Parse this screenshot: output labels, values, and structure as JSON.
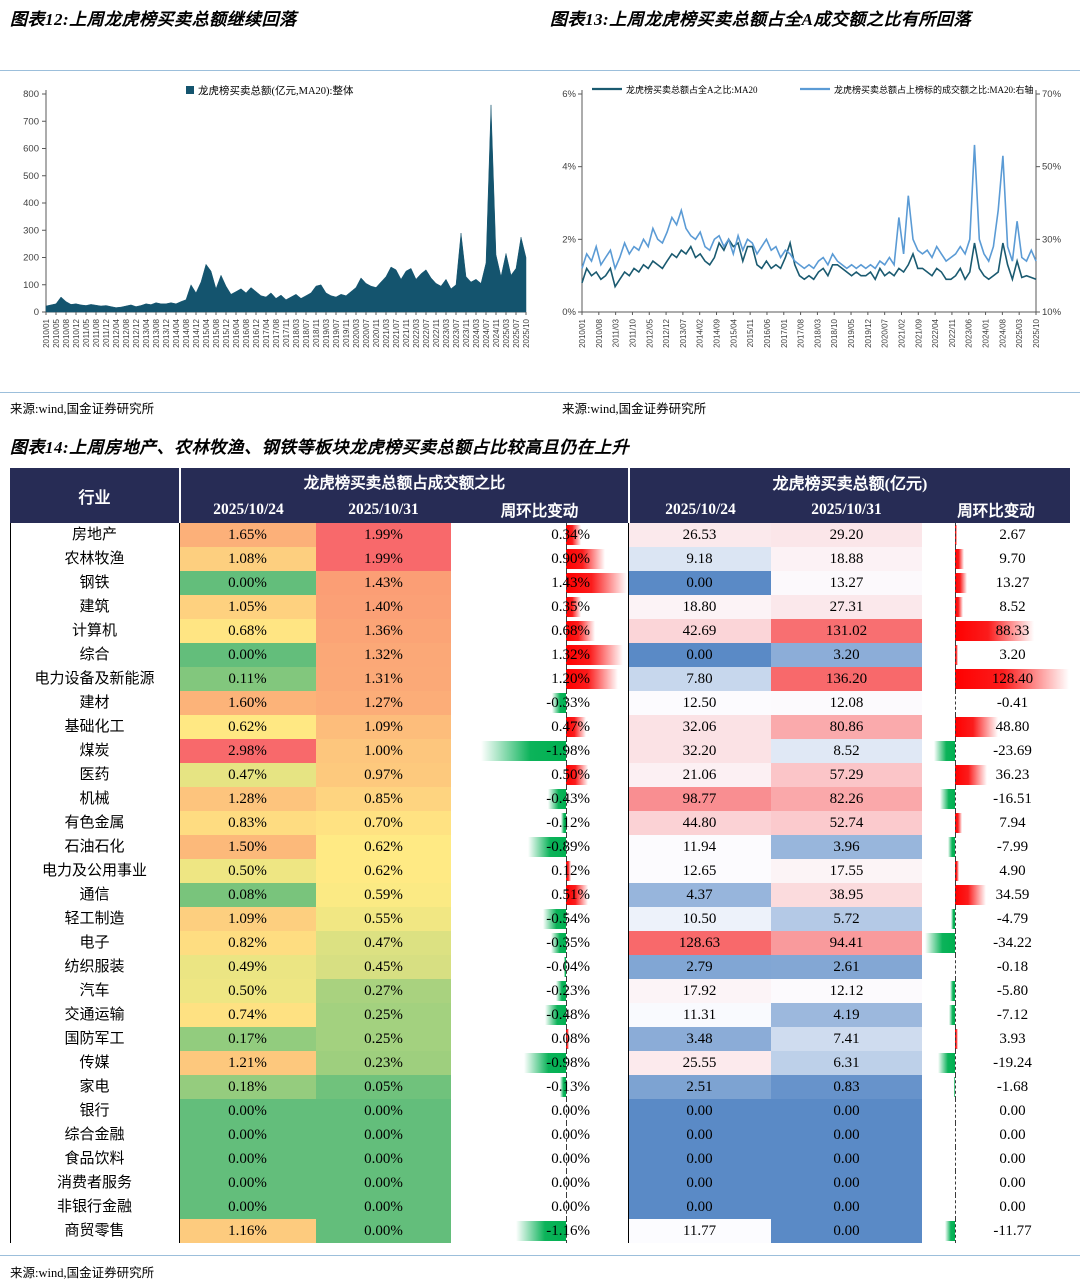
{
  "figure12": {
    "title": "图表12:上周龙虎榜买卖总额继续回落",
    "source": "来源:wind,国金证券研究所"
  },
  "figure13": {
    "title": "图表13:上周龙虎榜买卖总额占全A成交额之比有所回落",
    "source": "来源:wind,国金证券研究所"
  },
  "figure14": {
    "title": "图表14:上周房地产、农林牧渔、钢铁等板块龙虎榜买卖总额占比较高且仍在上升",
    "source": "来源:wind,国金证券研究所",
    "header": {
      "industry": "行业",
      "group_ratio": "龙虎榜买卖总额占成交额之比",
      "group_amount": "龙虎榜买卖总额(亿元)",
      "date1": "2025/10/24",
      "date2": "2025/10/31",
      "change": "周环比变动"
    },
    "colors": {
      "scale_green": "#63be7b",
      "scale_yellow": "#ffeb84",
      "scale_red": "#f8696b",
      "scale_blue": "#5a8ac6",
      "scale_white": "#fcfcff",
      "bar_pos": "#ff0000",
      "bar_neg": "#00b050",
      "header_bg": "#272c55"
    },
    "rows": [
      {
        "name": "房地产",
        "r24": 1.65,
        "r31": 1.99,
        "rchg": 0.34,
        "a24": 26.53,
        "a31": 29.2,
        "achg": 2.67
      },
      {
        "name": "农林牧渔",
        "r24": 1.08,
        "r31": 1.99,
        "rchg": 0.9,
        "a24": 9.18,
        "a31": 18.88,
        "achg": 9.7
      },
      {
        "name": "钢铁",
        "r24": 0.0,
        "r31": 1.43,
        "rchg": 1.43,
        "a24": 0.0,
        "a31": 13.27,
        "achg": 13.27
      },
      {
        "name": "建筑",
        "r24": 1.05,
        "r31": 1.4,
        "rchg": 0.35,
        "a24": 18.8,
        "a31": 27.31,
        "achg": 8.52
      },
      {
        "name": "计算机",
        "r24": 0.68,
        "r31": 1.36,
        "rchg": 0.68,
        "a24": 42.69,
        "a31": 131.02,
        "achg": 88.33
      },
      {
        "name": "综合",
        "r24": 0.0,
        "r31": 1.32,
        "rchg": 1.32,
        "a24": 0.0,
        "a31": 3.2,
        "achg": 3.2
      },
      {
        "name": "电力设备及新能源",
        "r24": 0.11,
        "r31": 1.31,
        "rchg": 1.2,
        "a24": 7.8,
        "a31": 136.2,
        "achg": 128.4
      },
      {
        "name": "建材",
        "r24": 1.6,
        "r31": 1.27,
        "rchg": -0.33,
        "a24": 12.5,
        "a31": 12.08,
        "achg": -0.41
      },
      {
        "name": "基础化工",
        "r24": 0.62,
        "r31": 1.09,
        "rchg": 0.47,
        "a24": 32.06,
        "a31": 80.86,
        "achg": 48.8
      },
      {
        "name": "煤炭",
        "r24": 2.98,
        "r31": 1.0,
        "rchg": -1.98,
        "a24": 32.2,
        "a31": 8.52,
        "achg": -23.69
      },
      {
        "name": "医药",
        "r24": 0.47,
        "r31": 0.97,
        "rchg": 0.5,
        "a24": 21.06,
        "a31": 57.29,
        "achg": 36.23
      },
      {
        "name": "机械",
        "r24": 1.28,
        "r31": 0.85,
        "rchg": -0.43,
        "a24": 98.77,
        "a31": 82.26,
        "achg": -16.51
      },
      {
        "name": "有色金属",
        "r24": 0.83,
        "r31": 0.7,
        "rchg": -0.12,
        "a24": 44.8,
        "a31": 52.74,
        "achg": 7.94
      },
      {
        "name": "石油石化",
        "r24": 1.5,
        "r31": 0.62,
        "rchg": -0.89,
        "a24": 11.94,
        "a31": 3.96,
        "achg": -7.99
      },
      {
        "name": "电力及公用事业",
        "r24": 0.5,
        "r31": 0.62,
        "rchg": 0.12,
        "a24": 12.65,
        "a31": 17.55,
        "achg": 4.9
      },
      {
        "name": "通信",
        "r24": 0.08,
        "r31": 0.59,
        "rchg": 0.51,
        "a24": 4.37,
        "a31": 38.95,
        "achg": 34.59
      },
      {
        "name": "轻工制造",
        "r24": 1.09,
        "r31": 0.55,
        "rchg": -0.54,
        "a24": 10.5,
        "a31": 5.72,
        "achg": -4.79
      },
      {
        "name": "电子",
        "r24": 0.82,
        "r31": 0.47,
        "rchg": -0.35,
        "a24": 128.63,
        "a31": 94.41,
        "achg": -34.22
      },
      {
        "name": "纺织服装",
        "r24": 0.49,
        "r31": 0.45,
        "rchg": -0.04,
        "a24": 2.79,
        "a31": 2.61,
        "achg": -0.18
      },
      {
        "name": "汽车",
        "r24": 0.5,
        "r31": 0.27,
        "rchg": -0.23,
        "a24": 17.92,
        "a31": 12.12,
        "achg": -5.8
      },
      {
        "name": "交通运输",
        "r24": 0.74,
        "r31": 0.25,
        "rchg": -0.48,
        "a24": 11.31,
        "a31": 4.19,
        "achg": -7.12
      },
      {
        "name": "国防军工",
        "r24": 0.17,
        "r31": 0.25,
        "rchg": 0.08,
        "a24": 3.48,
        "a31": 7.41,
        "achg": 3.93
      },
      {
        "name": "传媒",
        "r24": 1.21,
        "r31": 0.23,
        "rchg": -0.98,
        "a24": 25.55,
        "a31": 6.31,
        "achg": -19.24
      },
      {
        "name": "家电",
        "r24": 0.18,
        "r31": 0.05,
        "rchg": -0.13,
        "a24": 2.51,
        "a31": 0.83,
        "achg": -1.68
      },
      {
        "name": "银行",
        "r24": 0.0,
        "r31": 0.0,
        "rchg": 0.0,
        "a24": 0.0,
        "a31": 0.0,
        "achg": 0.0
      },
      {
        "name": "综合金融",
        "r24": 0.0,
        "r31": 0.0,
        "rchg": 0.0,
        "a24": 0.0,
        "a31": 0.0,
        "achg": 0.0
      },
      {
        "name": "食品饮料",
        "r24": 0.0,
        "r31": 0.0,
        "rchg": 0.0,
        "a24": 0.0,
        "a31": 0.0,
        "achg": 0.0
      },
      {
        "name": "消费者服务",
        "r24": 0.0,
        "r31": 0.0,
        "rchg": 0.0,
        "a24": 0.0,
        "a31": 0.0,
        "achg": 0.0
      },
      {
        "name": "非银行金融",
        "r24": 0.0,
        "r31": 0.0,
        "rchg": 0.0,
        "a24": 0.0,
        "a31": 0.0,
        "achg": 0.0
      },
      {
        "name": "商贸零售",
        "r24": 1.16,
        "r31": 0.0,
        "rchg": -1.16,
        "a24": 11.77,
        "a31": 0.0,
        "achg": -11.77
      }
    ]
  },
  "chart_data": [
    {
      "type": "area",
      "title": "上周龙虎榜买卖总额继续回落",
      "legend": "龙虎榜买卖总额(亿元,MA20):整体",
      "color": "#14546e",
      "ylim": [
        0,
        800
      ],
      "yticks": [
        0,
        100,
        200,
        300,
        400,
        500,
        600,
        700,
        800
      ],
      "x_labels": [
        "2010/01",
        "2010/05",
        "2010/08",
        "2010/12",
        "2011/05",
        "2011/08",
        "2011/12",
        "2012/04",
        "2012/08",
        "2012/12",
        "2013/04",
        "2013/08",
        "2013/12",
        "2014/04",
        "2014/08",
        "2014/12",
        "2015/04",
        "2015/08",
        "2015/12",
        "2016/04",
        "2016/08",
        "2016/12",
        "2017/04",
        "2017/08",
        "2017/11",
        "2018/03",
        "2018/07",
        "2018/11",
        "2019/03",
        "2019/07",
        "2019/11",
        "2020/03",
        "2020/07",
        "2020/11",
        "2021/03",
        "2021/07",
        "2021/11",
        "2022/03",
        "2022/07",
        "2022/11",
        "2023/03",
        "2023/07",
        "2023/11",
        "2024/03",
        "2024/07",
        "2024/11",
        "2025/03",
        "2025/07",
        "2025/10"
      ],
      "values": [
        22,
        26,
        30,
        55,
        38,
        28,
        30,
        26,
        24,
        28,
        25,
        22,
        24,
        20,
        16,
        18,
        22,
        26,
        20,
        24,
        30,
        27,
        34,
        30,
        30,
        34,
        30,
        38,
        45,
        100,
        70,
        110,
        175,
        150,
        85,
        135,
        95,
        65,
        75,
        85,
        70,
        90,
        75,
        60,
        55,
        70,
        50,
        62,
        45,
        55,
        65,
        50,
        60,
        70,
        95,
        100,
        70,
        60,
        55,
        65,
        60,
        75,
        90,
        125,
        105,
        95,
        90,
        110,
        130,
        165,
        155,
        120,
        150,
        160,
        120,
        140,
        155,
        125,
        105,
        95,
        120,
        85,
        100,
        290,
        130,
        110,
        120,
        105,
        180,
        760,
        210,
        130,
        215,
        135,
        160,
        275,
        200
      ]
    },
    {
      "type": "line",
      "title": "上周龙虎榜买卖总额占全A成交额之比有所回落",
      "left_ylim": [
        0,
        6
      ],
      "left_yticks": [
        "0%",
        "2%",
        "4%",
        "6%"
      ],
      "right_ylim": [
        10,
        70
      ],
      "right_yticks": [
        "10%",
        "30%",
        "50%",
        "70%"
      ],
      "x_labels": [
        "2010/01",
        "2010/08",
        "2011/03",
        "2011/10",
        "2012/05",
        "2012/12",
        "2013/07",
        "2014/02",
        "2014/09",
        "2015/04",
        "2015/11",
        "2016/06",
        "2017/01",
        "2017/08",
        "2018/03",
        "2018/10",
        "2019/05",
        "2019/12",
        "2020/07",
        "2021/02",
        "2021/09",
        "2022/04",
        "2022/11",
        "2023/06",
        "2024/01",
        "2024/08",
        "2025/03",
        "2025/10"
      ],
      "series": [
        {
          "name": "龙虎榜买卖总额占全A之比:MA20",
          "axis": "left",
          "color": "#1a5a70",
          "values": [
            0.8,
            1.2,
            1.0,
            1.1,
            0.9,
            1.0,
            1.2,
            0.7,
            0.9,
            1.1,
            1.0,
            1.2,
            1.1,
            1.3,
            1.2,
            1.4,
            1.3,
            1.2,
            1.4,
            1.6,
            1.5,
            1.7,
            1.6,
            1.8,
            1.5,
            1.6,
            1.4,
            1.3,
            1.5,
            1.9,
            1.7,
            2.0,
            1.8,
            1.9,
            1.4,
            1.8,
            1.8,
            1.3,
            1.2,
            1.4,
            1.2,
            1.3,
            1.2,
            1.5,
            1.9,
            1.3,
            1.0,
            0.9,
            1.0,
            0.9,
            1.1,
            1.2,
            1.0,
            1.3,
            1.3,
            1.2,
            1.1,
            1.0,
            1.1,
            1.0,
            1.0,
            1.1,
            0.9,
            1.2,
            1.0,
            1.1,
            1.0,
            1.2,
            1.1,
            1.3,
            1.6,
            1.2,
            1.2,
            1.1,
            1.0,
            1.2,
            1.1,
            0.9,
            0.9,
            1.0,
            1.2,
            0.9,
            1.1,
            1.9,
            1.2,
            1.0,
            0.9,
            1.0,
            1.1,
            1.9,
            1.3,
            0.9,
            1.4,
            0.95,
            1.0,
            0.95,
            0.9
          ]
        },
        {
          "name": "龙虎榜买卖总额占上榜标的成交额之比:MA20:右轴",
          "axis": "right",
          "color": "#5b9bd5",
          "values": [
            22,
            26,
            24,
            28,
            23,
            25,
            27,
            22,
            25,
            29,
            26,
            28,
            27,
            30,
            28,
            33,
            30,
            29,
            32,
            36,
            34,
            38,
            33,
            31,
            30,
            32,
            28,
            27,
            30,
            31,
            28,
            30,
            26,
            31,
            27,
            30,
            29,
            26,
            28,
            30,
            27,
            28,
            25,
            27,
            26,
            24,
            23,
            22,
            23,
            22,
            24,
            25,
            23,
            26,
            24,
            23,
            22,
            23,
            22,
            23,
            22,
            23,
            22,
            24,
            23,
            25,
            23,
            36,
            26,
            42,
            30,
            27,
            26,
            27,
            25,
            28,
            26,
            24,
            25,
            26,
            28,
            26,
            30,
            56,
            30,
            26,
            24,
            28,
            38,
            53,
            28,
            24,
            35,
            25,
            24,
            27,
            24
          ]
        }
      ]
    }
  ]
}
